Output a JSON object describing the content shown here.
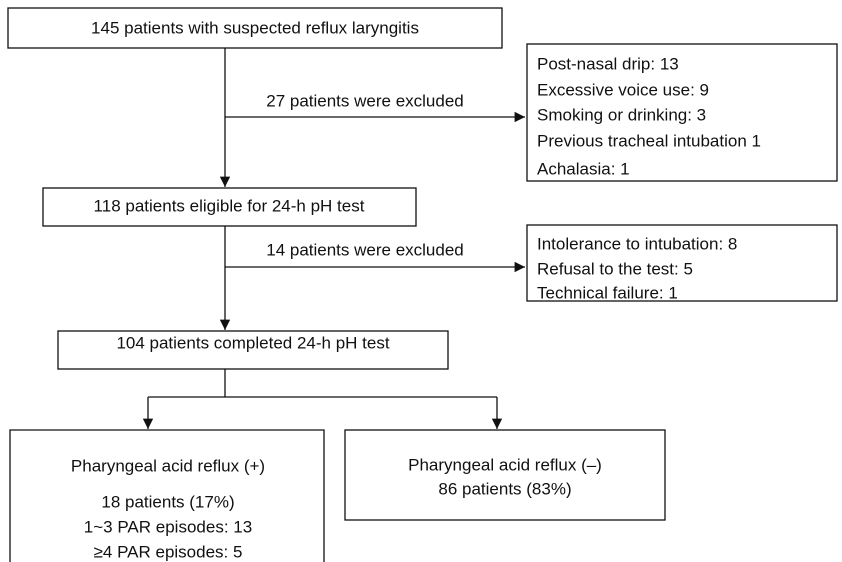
{
  "nodes": [
    {
      "label": "145 patients with suspected reflux laryngitis"
    },
    {
      "label": "118 patients eligible for 24-h pH test"
    },
    {
      "label": "104 patients completed 24-h pH test"
    }
  ],
  "exclusions": [
    {
      "label": "27 patients were excluded",
      "reasons": [
        "Post-nasal drip: 13",
        "Excessive voice use: 9",
        "Smoking or drinking: 3",
        "Previous tracheal intubation 1",
        "Achalasia: 1"
      ]
    },
    {
      "label": "14 patients were excluded",
      "reasons": [
        "Intolerance to intubation: 8",
        "Refusal to the test: 5",
        "Technical failure: 1"
      ]
    }
  ],
  "outcomes": [
    {
      "title": "Pharyngeal acid reflux (+)",
      "lines": [
        "18 patients (17%)",
        "1~3 PAR episodes: 13",
        "≥4 PAR episodes: 5"
      ]
    },
    {
      "title": "Pharyngeal acid reflux (–)",
      "lines": [
        "86 patients (83%)"
      ]
    }
  ]
}
